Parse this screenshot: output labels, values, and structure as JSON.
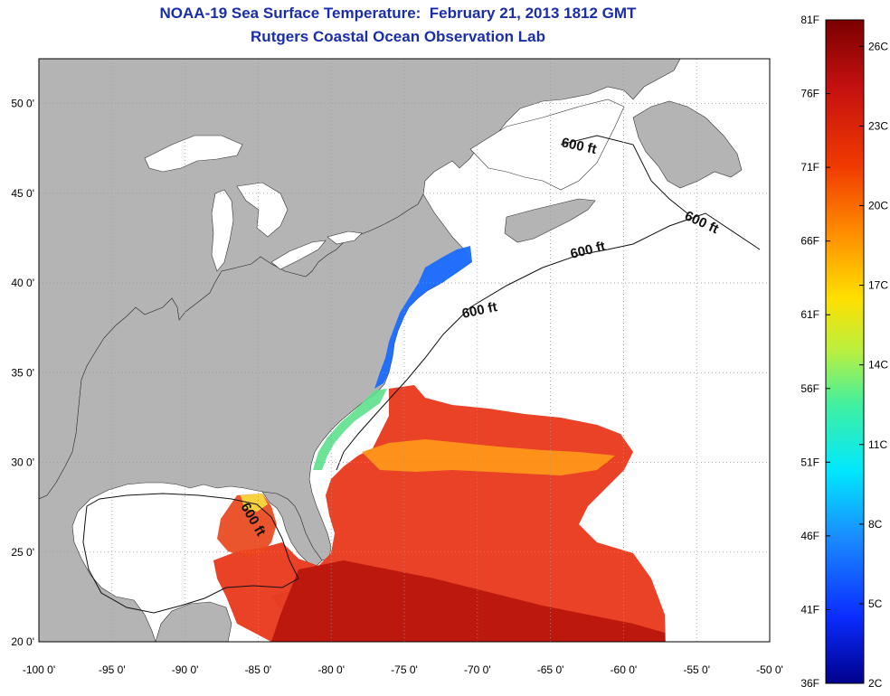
{
  "title": {
    "line1": "NOAA-19 Sea Surface Temperature:  February 21, 2013 1812 GMT",
    "line2": "Rutgers Coastal Ocean Observation Lab"
  },
  "colors": {
    "land": "#b4b4b4",
    "water": "#ffffff",
    "grid": "#9a9a9a",
    "title": "#1a2ea8"
  },
  "map": {
    "x_ticks": [
      "-100 0'",
      "-95 0'",
      "-90 0'",
      "-85 0'",
      "-80 0'",
      "-75 0'",
      "-70 0'",
      "-65 0'",
      "-60 0'",
      "-55 0'",
      "-50 0'"
    ],
    "y_ticks": [
      "50 0'",
      "45 0'",
      "40 0'",
      "35 0'",
      "30 0'",
      "25 0'",
      "20 0'"
    ],
    "contour_label": "600 ft",
    "lon_range": [
      -100,
      -50
    ],
    "lat_range": [
      20,
      52.5
    ]
  },
  "colorbar": {
    "fahrenheit_labels": [
      "81F",
      "76F",
      "71F",
      "66F",
      "61F",
      "56F",
      "51F",
      "46F",
      "41F",
      "36F"
    ],
    "celsius_labels": [
      "26C",
      "23C",
      "20C",
      "17C",
      "14C",
      "11C",
      "8C",
      "5C",
      "2C"
    ],
    "range_f": [
      36,
      81
    ],
    "range_c": [
      2,
      27
    ]
  }
}
